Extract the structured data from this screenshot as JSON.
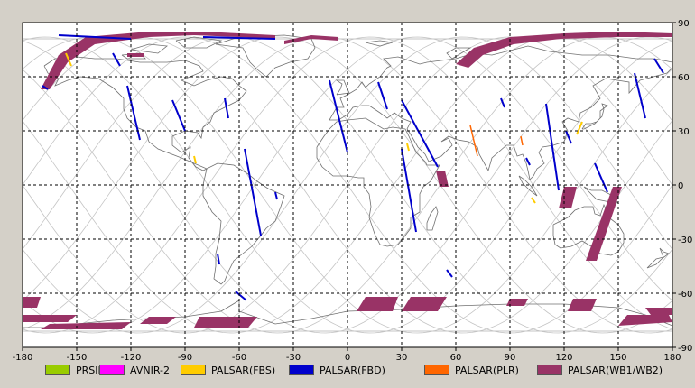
{
  "map": {
    "x_ticks": [
      "-180",
      "-150",
      "-120",
      "-90",
      "-60",
      "-30",
      "0",
      "30",
      "60",
      "90",
      "120",
      "150",
      "180"
    ],
    "y_ticks": [
      "90",
      "60",
      "30",
      "0",
      "-30",
      "-60",
      "-90"
    ],
    "lon_range": [
      -180,
      180
    ],
    "lat_range": [
      -90,
      90
    ],
    "grid": "dashed",
    "background": "#ffffff"
  },
  "legend": [
    {
      "label": "PRSIM",
      "color": "#99cc00"
    },
    {
      "label": "AVNIR-2",
      "color": "#ff00ff"
    },
    {
      "label": "PALSAR(FBS)",
      "color": "#ffcc00"
    },
    {
      "label": "PALSAR(FBD)",
      "color": "#0000cc"
    },
    {
      "label": "PALSAR(PLR)",
      "color": "#ff6600"
    },
    {
      "label": "PALSAR(WB1/WB2)",
      "color": "#993366"
    }
  ],
  "colors": {
    "coast": "#707070",
    "orbit": "#c4c4c4",
    "grid": "#000000"
  }
}
